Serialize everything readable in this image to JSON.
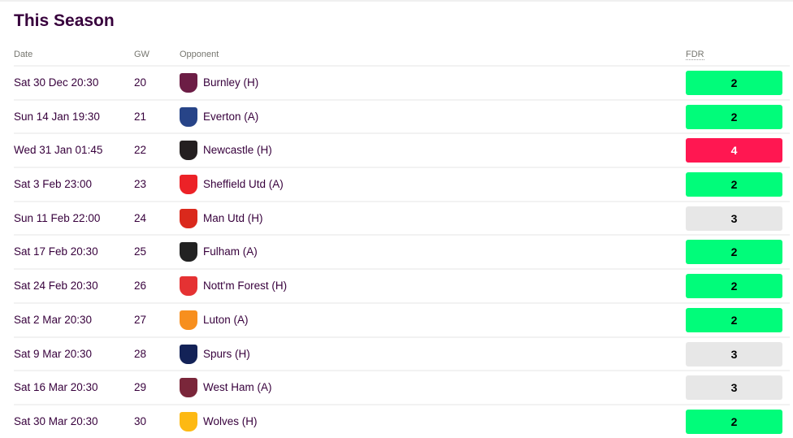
{
  "title": "This Season",
  "headers": {
    "date": "Date",
    "gw": "GW",
    "opponent": "Opponent",
    "fdr": "FDR"
  },
  "colors": {
    "2": "#01fc7a",
    "3": "#e7e7e7",
    "4": "#ff1751"
  },
  "fixtures": [
    {
      "date": "Sat 30 Dec 20:30",
      "gw": "20",
      "opponent": "Burnley (H)",
      "fdr": "2",
      "crest": "#6c1d45"
    },
    {
      "date": "Sun 14 Jan 19:30",
      "gw": "21",
      "opponent": "Everton (A)",
      "fdr": "2",
      "crest": "#274488"
    },
    {
      "date": "Wed 31 Jan 01:45",
      "gw": "22",
      "opponent": "Newcastle (H)",
      "fdr": "4",
      "crest": "#241f20"
    },
    {
      "date": "Sat 3 Feb 23:00",
      "gw": "23",
      "opponent": "Sheffield Utd (A)",
      "fdr": "2",
      "crest": "#ec2227"
    },
    {
      "date": "Sun 11 Feb 22:00",
      "gw": "24",
      "opponent": "Man Utd (H)",
      "fdr": "3",
      "crest": "#da291c"
    },
    {
      "date": "Sat 17 Feb 20:30",
      "gw": "25",
      "opponent": "Fulham (A)",
      "fdr": "2",
      "crest": "#222222"
    },
    {
      "date": "Sat 24 Feb 20:30",
      "gw": "26",
      "opponent": "Nott'm Forest (H)",
      "fdr": "2",
      "crest": "#e53233"
    },
    {
      "date": "Sat 2 Mar 20:30",
      "gw": "27",
      "opponent": "Luton (A)",
      "fdr": "2",
      "crest": "#f78f1e"
    },
    {
      "date": "Sat 9 Mar 20:30",
      "gw": "28",
      "opponent": "Spurs (H)",
      "fdr": "3",
      "crest": "#132257"
    },
    {
      "date": "Sat 16 Mar 20:30",
      "gw": "29",
      "opponent": "West Ham (A)",
      "fdr": "3",
      "crest": "#7a263a"
    },
    {
      "date": "Sat 30 Mar 20:30",
      "gw": "30",
      "opponent": "Wolves (H)",
      "fdr": "2",
      "crest": "#fdb913"
    }
  ]
}
